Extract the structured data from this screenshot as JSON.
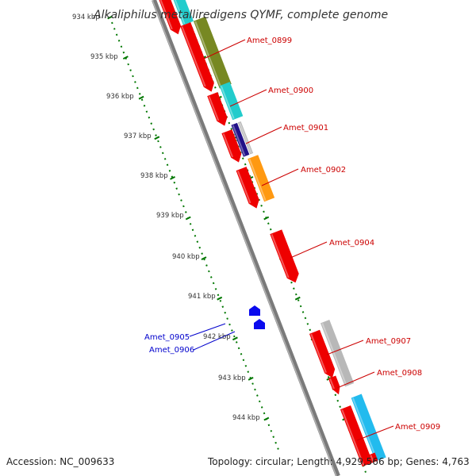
{
  "title": "Alkaliphilus metalliredigens QYMF, complete genome",
  "footer": {
    "accession": "Accession: NC_009633",
    "topology": "Topology: circular; Length: 4,929,566 bp; Genes: 4,763"
  },
  "colors": {
    "forward_label": "#cc0000",
    "reverse_label": "#0000cc",
    "backbone": "#808080",
    "tick": "#007700"
  },
  "ticks": [
    "934 kbp",
    "935 kbp",
    "936 kbp",
    "937 kbp",
    "938 kbp",
    "939 kbp",
    "940 kbp",
    "941 kbp",
    "942 kbp",
    "943 kbp",
    "944 kbp"
  ],
  "gene_labels": {
    "forward": [
      "Amet_0899",
      "Amet_0900",
      "Amet_0901",
      "Amet_0902",
      "Amet_0904",
      "Amet_0907",
      "Amet_0908",
      "Amet_0909"
    ],
    "reverse": [
      "Amet_0905",
      "Amet_0906"
    ]
  }
}
